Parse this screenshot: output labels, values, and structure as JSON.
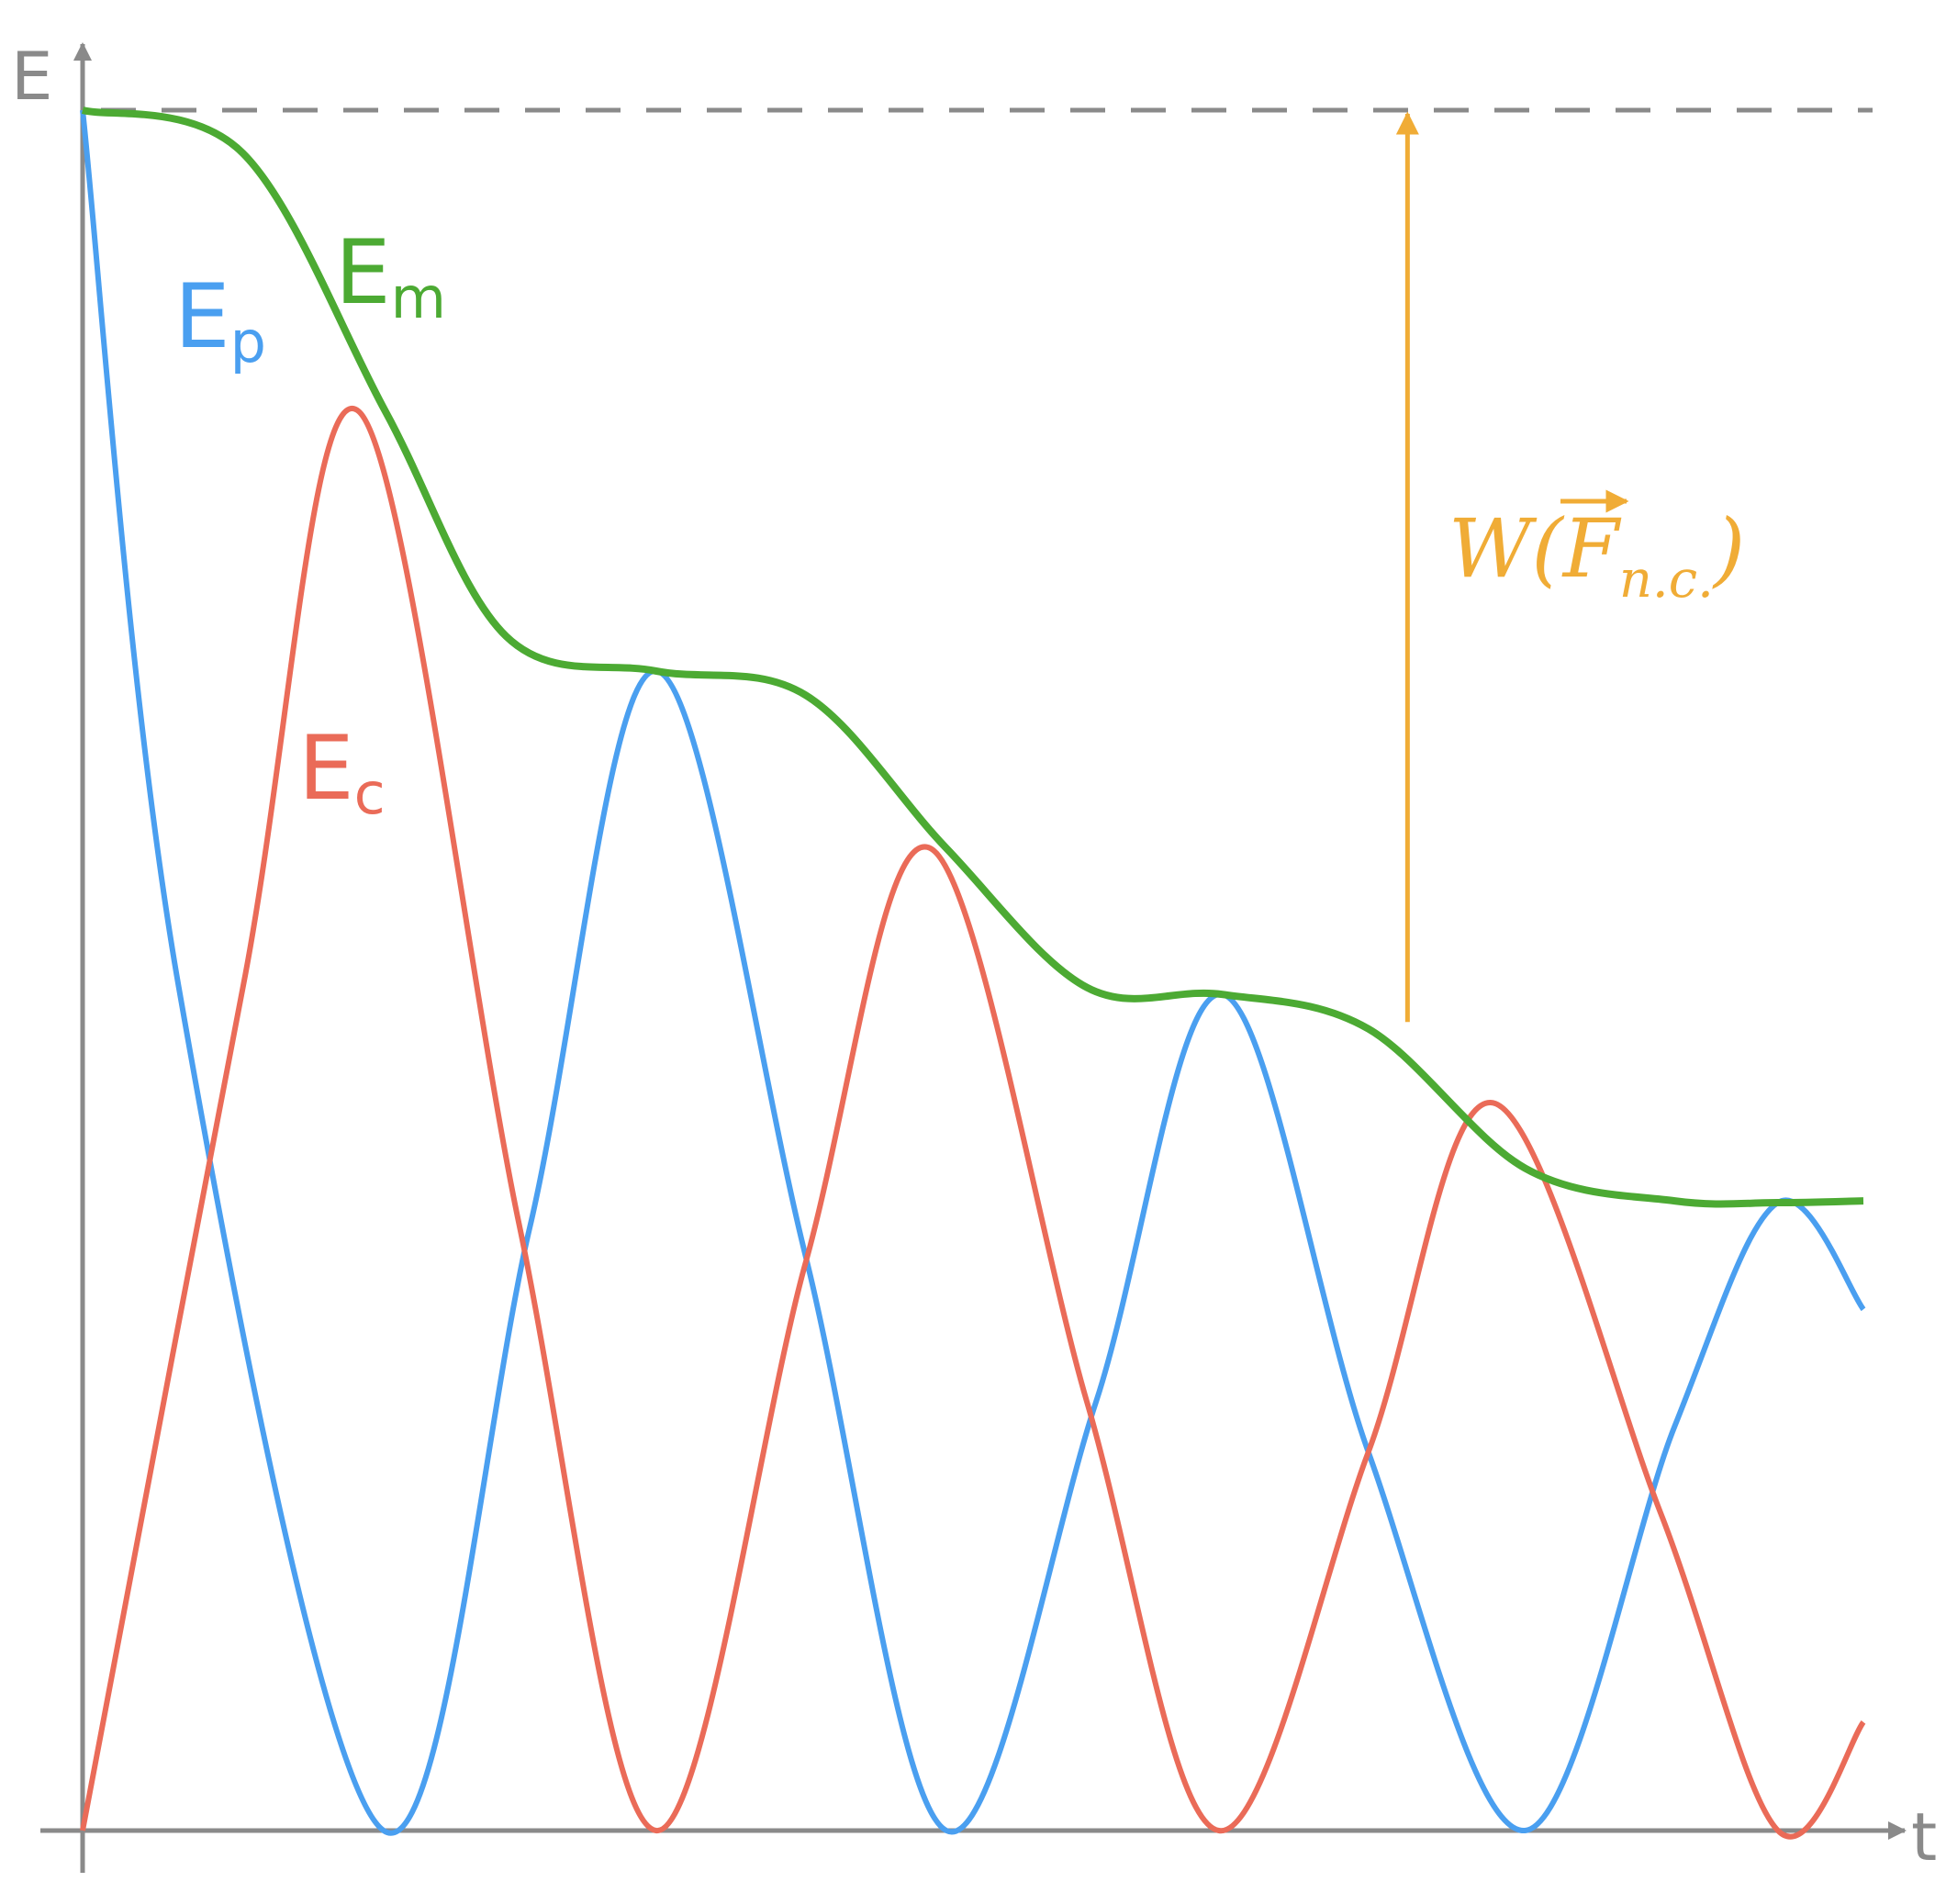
{
  "chart_data": {
    "type": "line",
    "title": "",
    "xlabel": "t",
    "ylabel": "E",
    "xlim": [
      0,
      1
    ],
    "ylim": [
      0,
      1
    ],
    "grid": false,
    "legend": "none",
    "colors": {
      "axis": "#8a8a8a",
      "Ep": "#4a9ff0",
      "Ec": "#ea6b58",
      "Em": "#4caa33",
      "work": "#f0ac36"
    },
    "reference_line": {
      "y": 1.0,
      "style": "dashed"
    },
    "series": [
      {
        "id": "Ep",
        "label_main": "E",
        "label_sub": "p",
        "x": [
          0.0,
          0.054,
          0.169,
          0.251,
          0.322,
          0.406,
          0.485,
          0.569,
          0.64,
          0.722,
          0.81,
          0.894,
          0.952,
          1.0
        ],
        "y": [
          1.0,
          0.49,
          0.0,
          0.35,
          0.674,
          0.334,
          0.0,
          0.249,
          0.486,
          0.22,
          0.0,
          0.235,
          0.365,
          0.303
        ]
      },
      {
        "id": "Ec",
        "label_main": "E",
        "label_sub": "c",
        "x": [
          0.0,
          0.09,
          0.155,
          0.245,
          0.322,
          0.406,
          0.476,
          0.564,
          0.638,
          0.722,
          0.792,
          0.886,
          0.952,
          1.0
        ],
        "y": [
          0.0,
          0.49,
          0.825,
          0.353,
          0.0,
          0.33,
          0.571,
          0.249,
          0.0,
          0.22,
          0.423,
          0.185,
          0.0,
          0.063
        ]
      },
      {
        "id": "Em",
        "label_main": "E",
        "label_sub": "m",
        "x": [
          0.0,
          0.09,
          0.17,
          0.238,
          0.322,
          0.406,
          0.485,
          0.564,
          0.64,
          0.722,
          0.81,
          0.894,
          0.952,
          1.0
        ],
        "y": [
          1.0,
          0.975,
          0.825,
          0.694,
          0.674,
          0.66,
          0.571,
          0.49,
          0.486,
          0.466,
          0.385,
          0.366,
          0.365,
          0.366
        ]
      }
    ],
    "annotation": {
      "symbol": "W",
      "vector": "F",
      "subscript": "n.c.",
      "arrow_x": 0.744,
      "arrow_from": 0.47,
      "arrow_to": 1.0
    }
  }
}
